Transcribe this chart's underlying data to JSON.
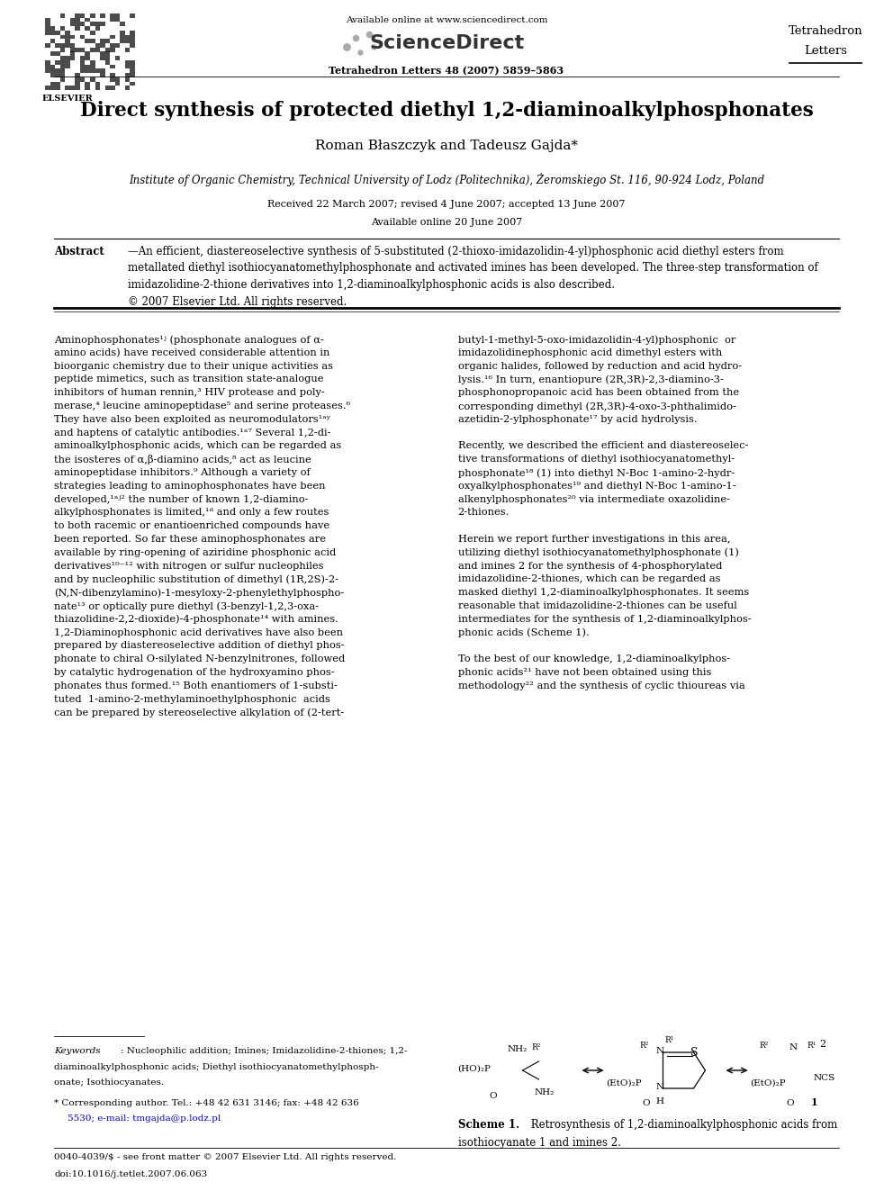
{
  "background_color": "#ffffff",
  "page_width": 9.92,
  "page_height": 13.23,
  "header": {
    "available_online": "Available online at www.sciencedirect.com",
    "journal_name_line1": "Tetrahedron",
    "journal_name_line2": "Letters",
    "journal_info": "Tetrahedron Letters 48 (2007) 5859–5863"
  },
  "title": "Direct synthesis of protected diethyl 1,2-diaminoalkylphosphonates",
  "authors": "Roman Błaszczyk and Tadeusz Gajda*",
  "affiliation": "Institute of Organic Chemistry, Technical University of Lodz (Politechnika), Żeromskiego St. 116, 90-924 Lodz, Poland",
  "dates": "Received 22 March 2007; revised 4 June 2007; accepted 13 June 2007",
  "available_online_date": "Available online 20 June 2007",
  "abstract_text": "An efficient, diastereoselective synthesis of 5-substituted (2-thioxo-imidazolidin-4-yl)phosphonic acid diethyl esters from metallated diethyl isothiocyanatomethylphosphonate and activated imines has been developed. The three-step transformation of imidazolidine-2-thione derivatives into 1,2-diaminoalkylphosphonic acids is also described.\n© 2007 Elsevier Ltd. All rights reserved.",
  "keywords_text": "Keywords: Nucleophilic addition; Imines; Imidazolidine-2-thiones; 1,2-diaminoalkylphosphonic acids; Diethyl isothiocyanatomethylphosphonate; Isothiocyanates.",
  "footnote_star": "* Corresponding author. Tel.: +48 42 631 3146; fax: +48 42 636\n  5530; e-mail: tmgajda@p.lodz.pl",
  "footer_left": "0040-4039/$ - see front matter © 2007 Elsevier Ltd. All rights reserved.\ndoi:10.1016/j.tetlet.2007.06.063",
  "scheme_caption_bold": "Scheme 1.",
  "scheme_caption_normal": "  Retrosynthesis of 1,2-diaminoalkylphosphonic acids from isothiocyanate 1 and imines 2."
}
